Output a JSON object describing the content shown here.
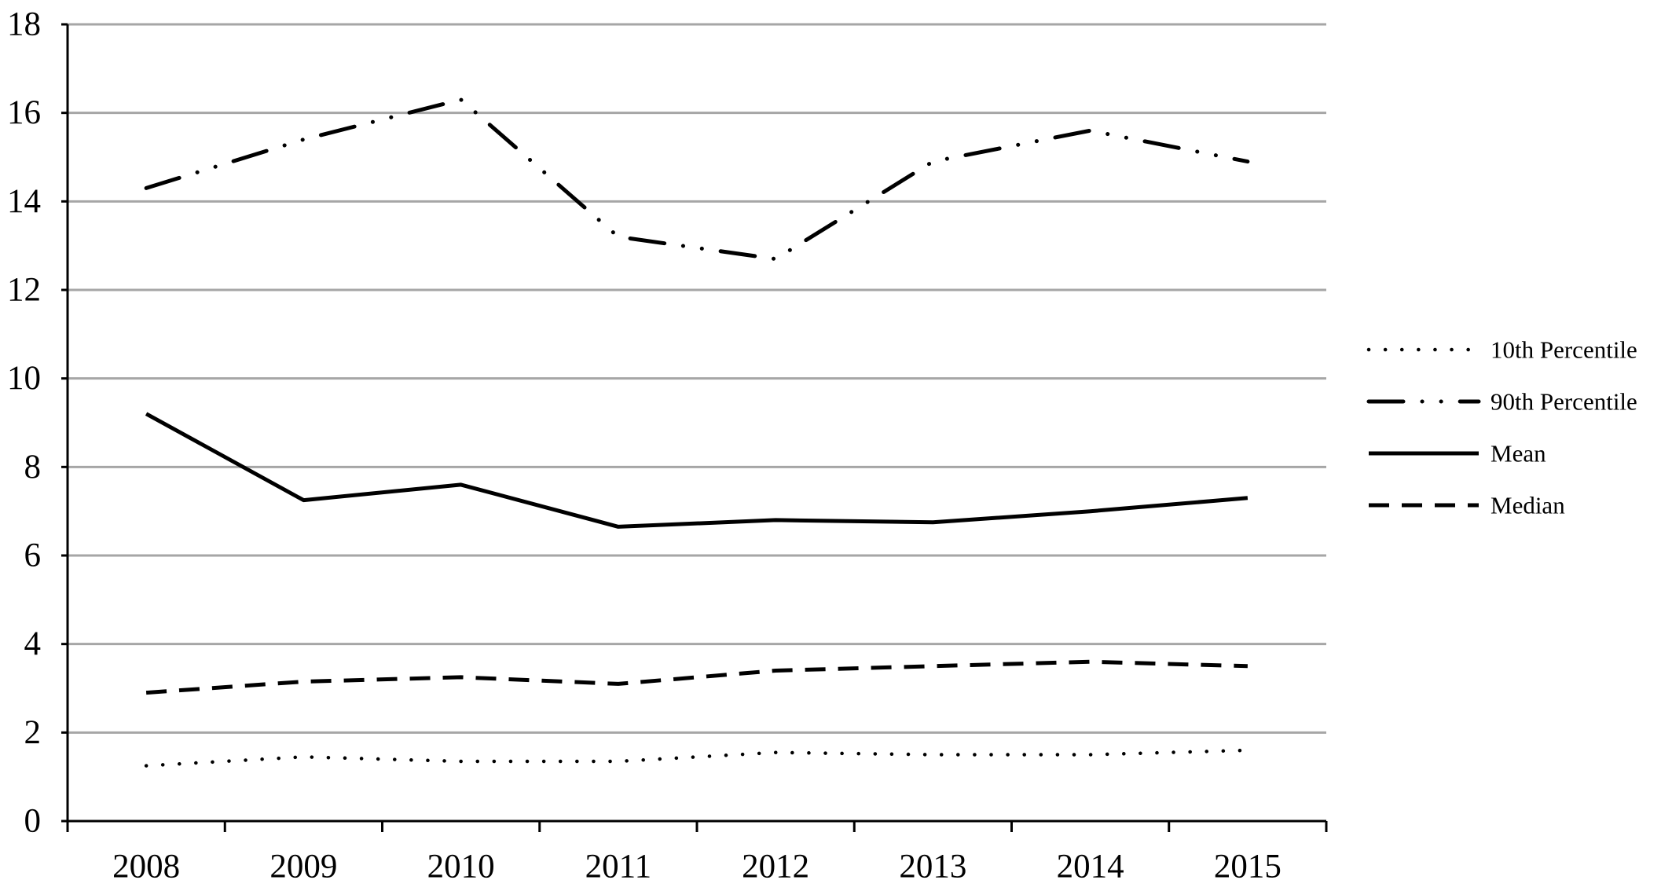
{
  "chart_data": {
    "type": "line",
    "title": "",
    "xlabel": "",
    "ylabel": "",
    "categories": [
      "2008",
      "2009",
      "2010",
      "2011",
      "2012",
      "2013",
      "2014",
      "2015"
    ],
    "ylim": [
      0,
      18
    ],
    "yticks": [
      "0",
      "2",
      "4",
      "6",
      "8",
      "10",
      "12",
      "14",
      "16",
      "18"
    ],
    "grid": "horizontal",
    "legend_position": "right",
    "series": [
      {
        "name": "10th Percentile",
        "style": "dotted",
        "values": [
          1.25,
          1.45,
          1.35,
          1.35,
          1.55,
          1.5,
          1.5,
          1.6
        ]
      },
      {
        "name": "90th Percentile",
        "style": "long-dash-dot-dot",
        "values": [
          14.3,
          15.4,
          16.3,
          13.2,
          12.7,
          14.9,
          15.6,
          14.9
        ]
      },
      {
        "name": "Mean",
        "style": "solid",
        "values": [
          9.2,
          7.25,
          7.6,
          6.65,
          6.8,
          6.75,
          7.0,
          7.3
        ]
      },
      {
        "name": "Median",
        "style": "dashed",
        "values": [
          2.9,
          3.15,
          3.25,
          3.1,
          3.4,
          3.5,
          3.6,
          3.5
        ]
      }
    ],
    "colors": {
      "line": "#000000",
      "grid": "#a6a6a6"
    }
  }
}
